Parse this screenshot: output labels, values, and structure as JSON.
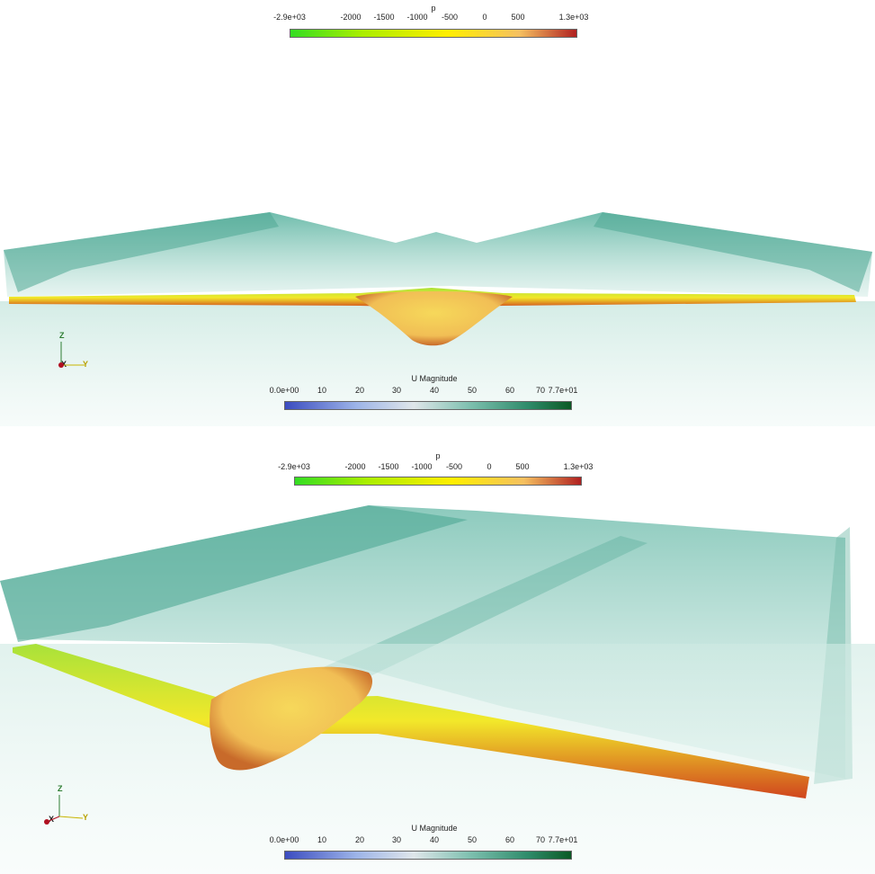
{
  "panels": [
    {
      "pressure_bar": {
        "title": "p",
        "ticks": [
          "-2.9e+03",
          "-2000",
          "-1500",
          "-1000",
          "-500",
          "0",
          "500",
          "1.3e+03"
        ],
        "colors": [
          "#33dd22",
          "#aaee00",
          "#ffee00",
          "#f5c060",
          "#b02020"
        ]
      },
      "velocity_bar": {
        "title": "U Magnitude",
        "ticks": [
          "0.0e+00",
          "10",
          "20",
          "30",
          "40",
          "50",
          "60",
          "70",
          "7.7e+01"
        ],
        "colors": [
          "#3b4cc0",
          "#9db4e8",
          "#dfe6ea",
          "#7cbfae",
          "#2e8b6a",
          "#0b5a25"
        ]
      },
      "axes": {
        "z": "Z",
        "x": "X",
        "y": "Y"
      }
    },
    {
      "pressure_bar": {
        "title": "p",
        "ticks": [
          "-2.9e+03",
          "-2000",
          "-1500",
          "-1000",
          "-500",
          "0",
          "500",
          "1.3e+03"
        ],
        "colors": [
          "#33dd22",
          "#aaee00",
          "#ffee00",
          "#f5c060",
          "#b02020"
        ]
      },
      "velocity_bar": {
        "title": "U Magnitude",
        "ticks": [
          "0.0e+00",
          "10",
          "20",
          "30",
          "40",
          "50",
          "60",
          "70",
          "7.7e+01"
        ],
        "colors": [
          "#3b4cc0",
          "#9db4e8",
          "#dfe6ea",
          "#7cbfae",
          "#2e8b6a",
          "#0b5a25"
        ]
      },
      "axes": {
        "z": "Z",
        "x": "X",
        "y": "Y"
      }
    }
  ]
}
